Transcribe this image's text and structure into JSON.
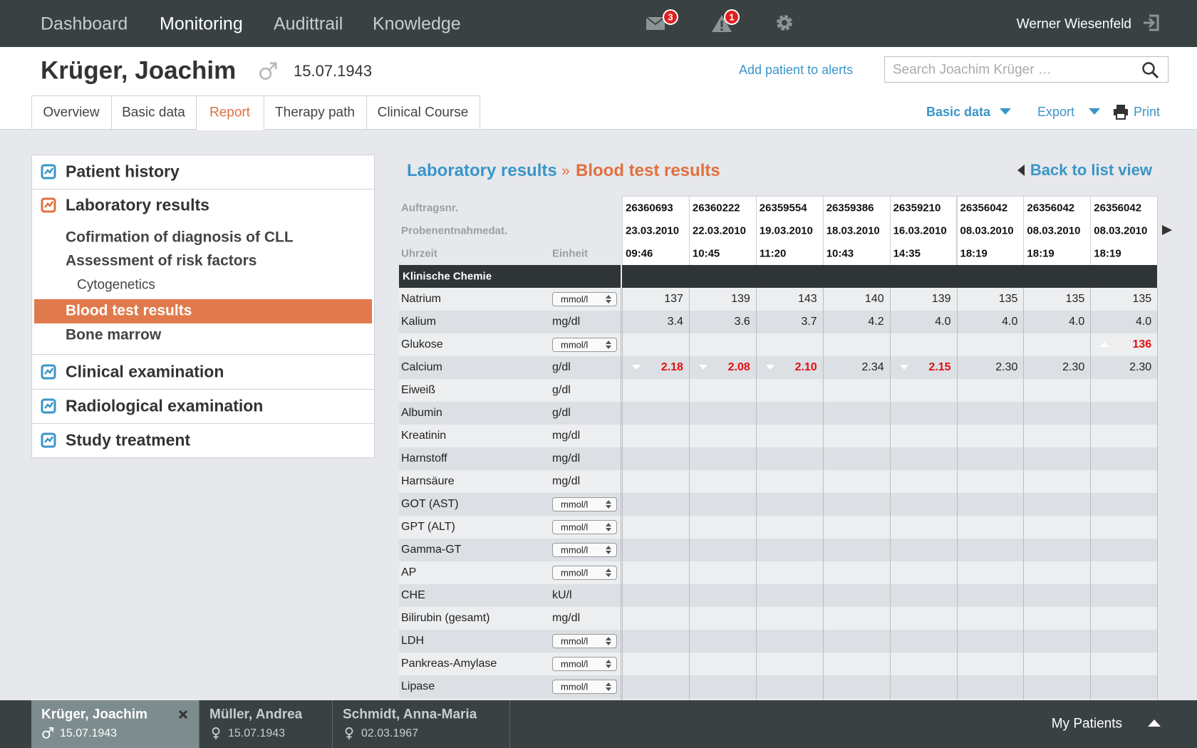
{
  "nav": {
    "items": [
      "Dashboard",
      "Monitoring",
      "Audittrail",
      "Knowledge"
    ],
    "active": 1,
    "mail_badge": "3",
    "alert_badge": "1",
    "user": "Werner Wiesenfeld"
  },
  "patient": {
    "name": "Krüger, Joachim",
    "sex": "male",
    "dob": "15.07.1943",
    "add_alerts": "Add patient to alerts",
    "search_placeholder": "Search Joachim Krüger …"
  },
  "tabs": {
    "items": [
      "Overview",
      "Basic data",
      "Report",
      "Therapy path",
      "Clinical Course"
    ],
    "active": 2
  },
  "actions": [
    "Basic data",
    "Export",
    "Print"
  ],
  "sidebar": [
    {
      "label": "Patient history"
    },
    {
      "label": "Laboratory results",
      "children": [
        {
          "label": "Cofirmation of diagnosis of CLL"
        },
        {
          "label": "Assessment of risk factors"
        },
        {
          "label": "Cytogenetics",
          "indent": true
        },
        {
          "label": "Blood test results",
          "active": true
        },
        {
          "label": "Bone marrow"
        }
      ]
    },
    {
      "label": "Clinical examination"
    },
    {
      "label": "Radiological examination"
    },
    {
      "label": "Study treatment"
    }
  ],
  "breadcrumb": {
    "parent": "Laboratory results",
    "separator": "»",
    "current": "Blood test results",
    "back": "Back to list view"
  },
  "table": {
    "header_labels": [
      "Auftragsnr.",
      "Probenentnahmedat.",
      "Uhrzeit"
    ],
    "unit_label": "Einheit",
    "columns": [
      {
        "order": "26360693",
        "date": "23.03.2010",
        "time": "09:46"
      },
      {
        "order": "26360222",
        "date": "22.03.2010",
        "time": "10:45"
      },
      {
        "order": "26359554",
        "date": "19.03.2010",
        "time": "11:20"
      },
      {
        "order": "26359386",
        "date": "18.03.2010",
        "time": "10:43"
      },
      {
        "order": "26359210",
        "date": "16.03.2010",
        "time": "14:35"
      },
      {
        "order": "26356042",
        "date": "08.03.2010",
        "time": "18:19"
      },
      {
        "order": "26356042",
        "date": "08.03.2010",
        "time": "18:19"
      },
      {
        "order": "26356042",
        "date": "08.03.2010",
        "time": "18:19"
      }
    ],
    "section": "Klinische Chemie",
    "rows": [
      {
        "name": "Natrium",
        "unit": "mmol/l",
        "select": true,
        "values": [
          "137",
          "139",
          "143",
          "140",
          "139",
          "135",
          "135",
          "135"
        ]
      },
      {
        "name": "Kalium",
        "unit": "mg/dl",
        "values": [
          "3.4",
          "3.6",
          "3.7",
          "4.2",
          "4.0",
          "4.0",
          "4.0",
          "4.0"
        ]
      },
      {
        "name": "Glukose",
        "unit": "mmol/l",
        "select": true,
        "values": [
          null,
          null,
          null,
          null,
          null,
          null,
          null,
          "136"
        ],
        "flags": [
          null,
          null,
          null,
          null,
          null,
          null,
          null,
          "high"
        ]
      },
      {
        "name": "Calcium",
        "unit": "g/dl",
        "values": [
          "2.18",
          "2.08",
          "2.10",
          "2.34",
          "2.15",
          "2.30",
          "2.30",
          "2.30"
        ],
        "flags": [
          "low",
          "low",
          "low",
          null,
          "low",
          null,
          null,
          null
        ]
      },
      {
        "name": "Eiweiß",
        "unit": "g/dl"
      },
      {
        "name": "Albumin",
        "unit": "g/dl"
      },
      {
        "name": "Kreatinin",
        "unit": "mg/dl"
      },
      {
        "name": "Harnstoff",
        "unit": "mg/dl"
      },
      {
        "name": "Harnsäure",
        "unit": "mg/dl"
      },
      {
        "name": "GOT (AST)",
        "unit": "mmol/l",
        "select": true
      },
      {
        "name": "GPT (ALT)",
        "unit": "mmol/l",
        "select": true
      },
      {
        "name": "Gamma-GT",
        "unit": "mmol/l",
        "select": true
      },
      {
        "name": "AP",
        "unit": "mmol/l",
        "select": true
      },
      {
        "name": "CHE",
        "unit": "kU/l"
      },
      {
        "name": "Bilirubin (gesamt)",
        "unit": "mg/dl"
      },
      {
        "name": "LDH",
        "unit": "mmol/l",
        "select": true
      },
      {
        "name": "Pankreas-Amylase",
        "unit": "mmol/l",
        "select": true
      },
      {
        "name": "Lipase",
        "unit": "mmol/l",
        "select": true
      }
    ]
  },
  "footer": {
    "patients": [
      {
        "name": "Krüger, Joachim",
        "sex": "male",
        "dob": "15.07.1943",
        "active": true
      },
      {
        "name": "Müller, Andrea",
        "sex": "female",
        "dob": "15.07.1943"
      },
      {
        "name": "Schmidt, Anna-Maria",
        "sex": "female",
        "dob": "02.03.1967"
      }
    ],
    "my_patients": "My Patients"
  }
}
